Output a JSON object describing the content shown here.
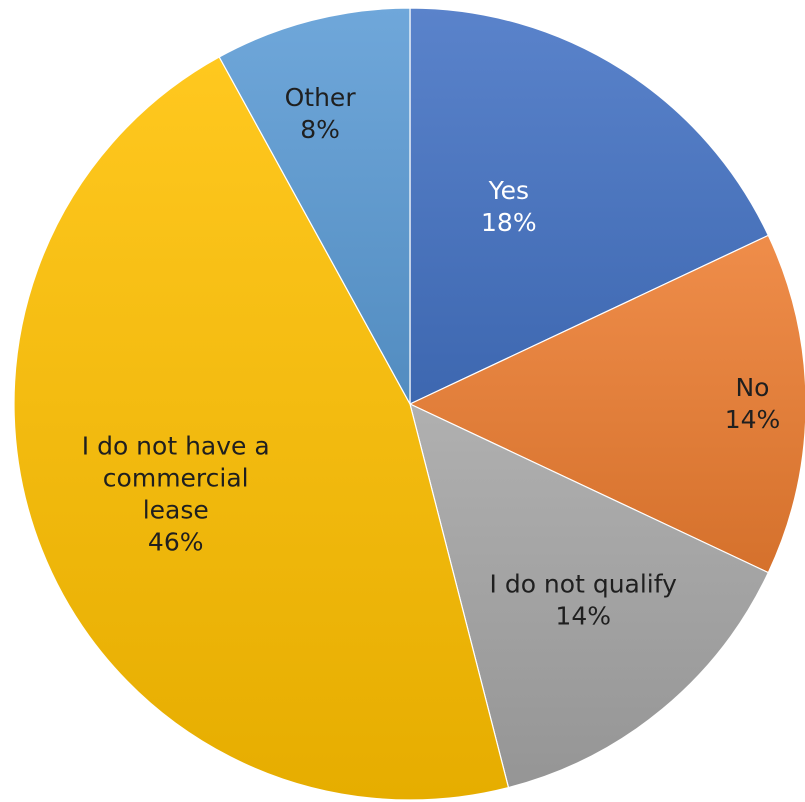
{
  "chart_data": {
    "type": "pie",
    "title": "",
    "legend": "none",
    "start_angle_deg": 0,
    "direction": "clockwise",
    "slices": [
      {
        "label": "Yes",
        "value": 18,
        "pct_label": "18%",
        "color": "#4472C4",
        "label_color": "#ffffff"
      },
      {
        "label": "No",
        "value": 14,
        "pct_label": "14%",
        "color": "#ED7D31",
        "label_color": "#1f1f1f"
      },
      {
        "label": "I do not qualify",
        "value": 14,
        "pct_label": "14%",
        "color": "#A5A5A5",
        "label_color": "#1f1f1f"
      },
      {
        "label": "I do not have a commercial lease",
        "value": 46,
        "pct_label": "46%",
        "color": "#FFC000",
        "label_color": "#1f1f1f"
      },
      {
        "label": "Other",
        "value": 8,
        "pct_label": "8%",
        "color": "#5B9BD5",
        "label_color": "#1f1f1f"
      }
    ]
  }
}
